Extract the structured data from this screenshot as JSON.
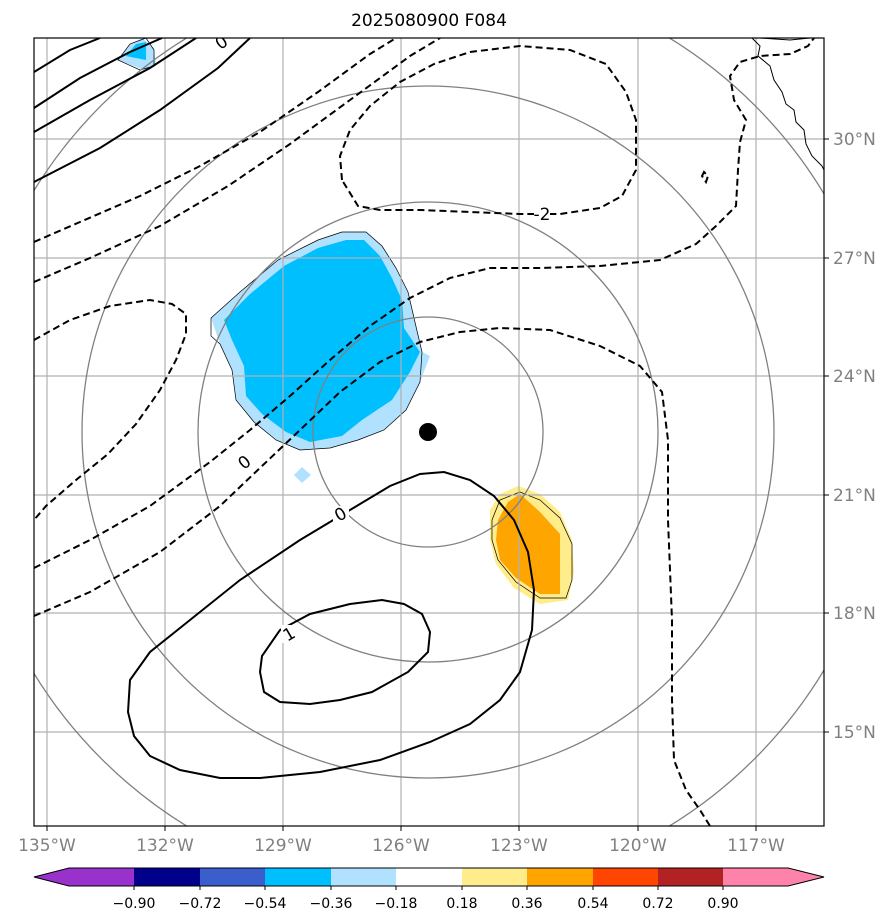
{
  "title": "2025080900 F084",
  "axes": {
    "lon_labels": [
      "135°W",
      "132°W",
      "129°W",
      "126°W",
      "123°W",
      "120°W",
      "117°W"
    ],
    "lat_labels": [
      "30°N",
      "27°N",
      "24°N",
      "21°N",
      "18°N",
      "15°N"
    ],
    "lon_extent": [
      -135.3,
      -115.4
    ],
    "lat_extent": [
      12.8,
      32.6
    ],
    "grid": true
  },
  "storm_center": {
    "lon": -124.95,
    "lat": 22.55
  },
  "range_rings_deg": [
    3,
    6,
    9,
    12
  ],
  "contour_labels": {
    "dashed_top": "-2",
    "zero_left": "0",
    "zero_mid": "0",
    "positive": "1",
    "top_left": "0"
  },
  "colorbar": {
    "ticks": [
      "−0.90",
      "−0.72",
      "−0.54",
      "−0.36",
      "−0.18",
      "0.18",
      "0.36",
      "0.54",
      "0.72",
      "0.90"
    ],
    "colors": [
      "#9932cc",
      "#00008b",
      "#3a5fcd",
      "#00bfff",
      "#b0e2ff",
      "#ffffff",
      "#ffec8b",
      "#ffa500",
      "#ff4500",
      "#b22222",
      "#ff82ab"
    ],
    "extend": "both"
  },
  "shading_colors": {
    "neg_light": "#b0e2ff",
    "neg_mid": "#00bfff",
    "pos_light": "#ffec8b",
    "pos_mid": "#ffa500"
  }
}
